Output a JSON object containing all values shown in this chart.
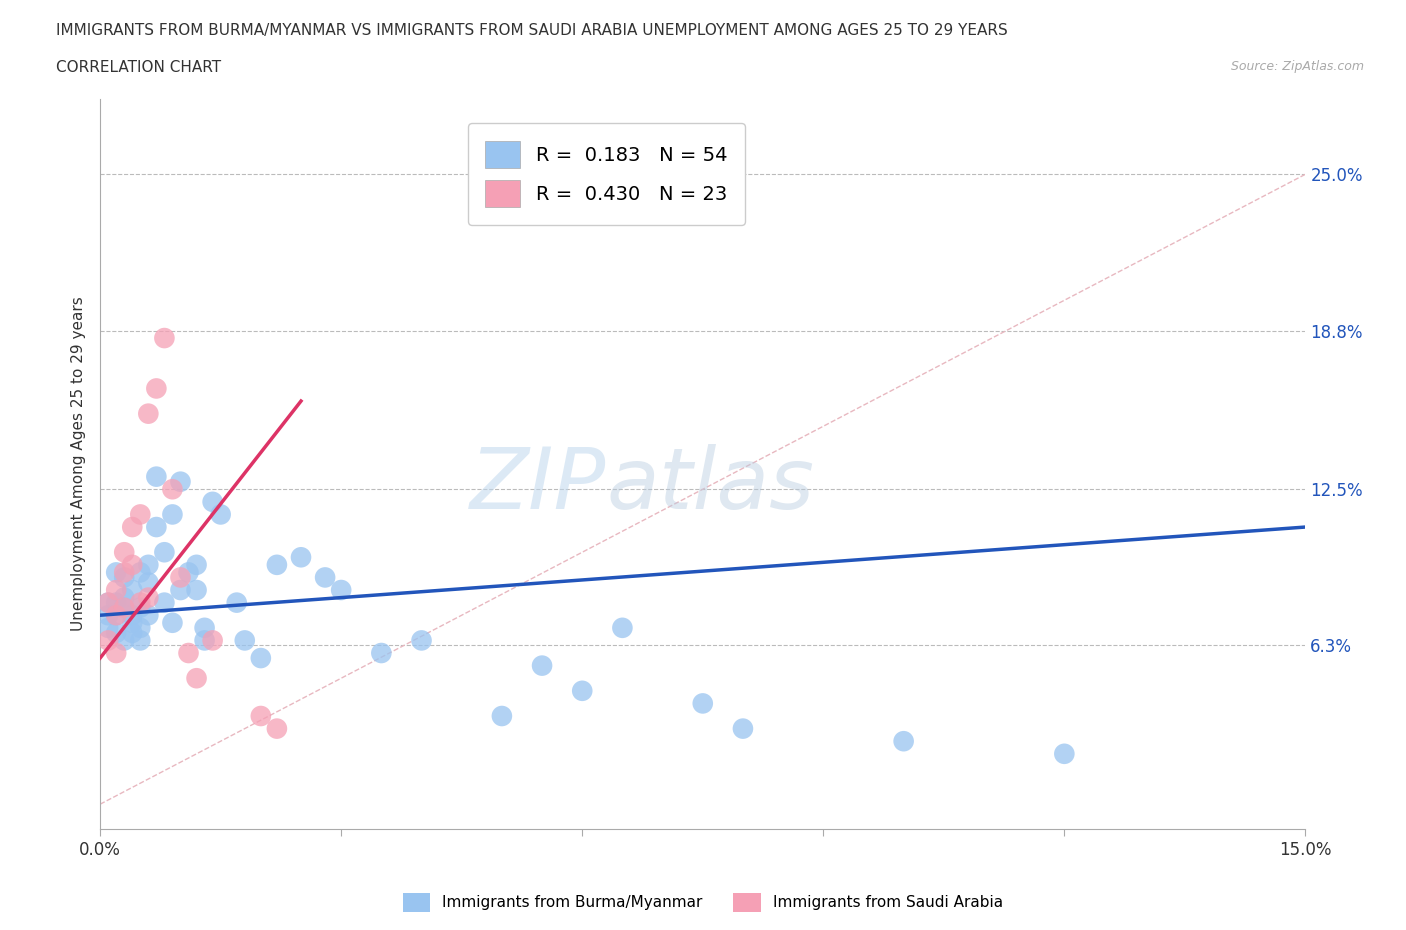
{
  "title_line1": "IMMIGRANTS FROM BURMA/MYANMAR VS IMMIGRANTS FROM SAUDI ARABIA UNEMPLOYMENT AMONG AGES 25 TO 29 YEARS",
  "title_line2": "CORRELATION CHART",
  "source_text": "Source: ZipAtlas.com",
  "ylabel": "Unemployment Among Ages 25 to 29 years",
  "xlim": [
    0.0,
    0.15
  ],
  "ylim": [
    -0.01,
    0.28
  ],
  "xticks": [
    0.0,
    0.03,
    0.06,
    0.09,
    0.12,
    0.15
  ],
  "xticklabels": [
    "0.0%",
    "",
    "",
    "",
    "",
    "15.0%"
  ],
  "ytick_positions": [
    0.063,
    0.125,
    0.188,
    0.25
  ],
  "ytick_labels": [
    "6.3%",
    "12.5%",
    "18.8%",
    "25.0%"
  ],
  "watermark_zip": "ZIP",
  "watermark_atlas": "atlas",
  "legend_r1": "R =  0.183",
  "legend_n1": "N = 54",
  "legend_r2": "R =  0.430",
  "legend_n2": "N = 23",
  "color_burma": "#99c4f0",
  "color_saudi": "#f5a0b5",
  "color_line_burma": "#2255bb",
  "color_line_saudi": "#dd3366",
  "color_diagonal": "#e8b8c0",
  "background_color": "#ffffff",
  "grid_color": "#bbbbbb",
  "burma_x": [
    0.001,
    0.001,
    0.001,
    0.002,
    0.002,
    0.002,
    0.002,
    0.003,
    0.003,
    0.003,
    0.003,
    0.004,
    0.004,
    0.004,
    0.004,
    0.005,
    0.005,
    0.005,
    0.005,
    0.006,
    0.006,
    0.006,
    0.007,
    0.007,
    0.008,
    0.008,
    0.009,
    0.009,
    0.01,
    0.01,
    0.011,
    0.012,
    0.012,
    0.013,
    0.013,
    0.014,
    0.015,
    0.017,
    0.018,
    0.02,
    0.022,
    0.025,
    0.028,
    0.03,
    0.035,
    0.04,
    0.05,
    0.055,
    0.06,
    0.065,
    0.075,
    0.08,
    0.1,
    0.12
  ],
  "burma_y": [
    0.07,
    0.08,
    0.075,
    0.068,
    0.08,
    0.092,
    0.075,
    0.065,
    0.078,
    0.09,
    0.082,
    0.072,
    0.085,
    0.068,
    0.075,
    0.078,
    0.065,
    0.092,
    0.07,
    0.088,
    0.095,
    0.075,
    0.11,
    0.13,
    0.08,
    0.1,
    0.072,
    0.115,
    0.085,
    0.128,
    0.092,
    0.095,
    0.085,
    0.07,
    0.065,
    0.12,
    0.115,
    0.08,
    0.065,
    0.058,
    0.095,
    0.098,
    0.09,
    0.085,
    0.06,
    0.065,
    0.035,
    0.055,
    0.045,
    0.07,
    0.04,
    0.03,
    0.025,
    0.02
  ],
  "saudi_x": [
    0.001,
    0.001,
    0.002,
    0.002,
    0.002,
    0.003,
    0.003,
    0.003,
    0.004,
    0.004,
    0.005,
    0.005,
    0.006,
    0.006,
    0.007,
    0.008,
    0.009,
    0.01,
    0.011,
    0.012,
    0.014,
    0.02,
    0.022
  ],
  "saudi_y": [
    0.065,
    0.08,
    0.06,
    0.075,
    0.085,
    0.078,
    0.092,
    0.1,
    0.095,
    0.11,
    0.08,
    0.115,
    0.082,
    0.155,
    0.165,
    0.185,
    0.125,
    0.09,
    0.06,
    0.05,
    0.065,
    0.035,
    0.03
  ],
  "burma_line_x0": 0.0,
  "burma_line_x1": 0.15,
  "burma_line_y0": 0.075,
  "burma_line_y1": 0.11,
  "saudi_line_x0": 0.0,
  "saudi_line_x1": 0.025,
  "saudi_line_y0": 0.058,
  "saudi_line_y1": 0.16
}
